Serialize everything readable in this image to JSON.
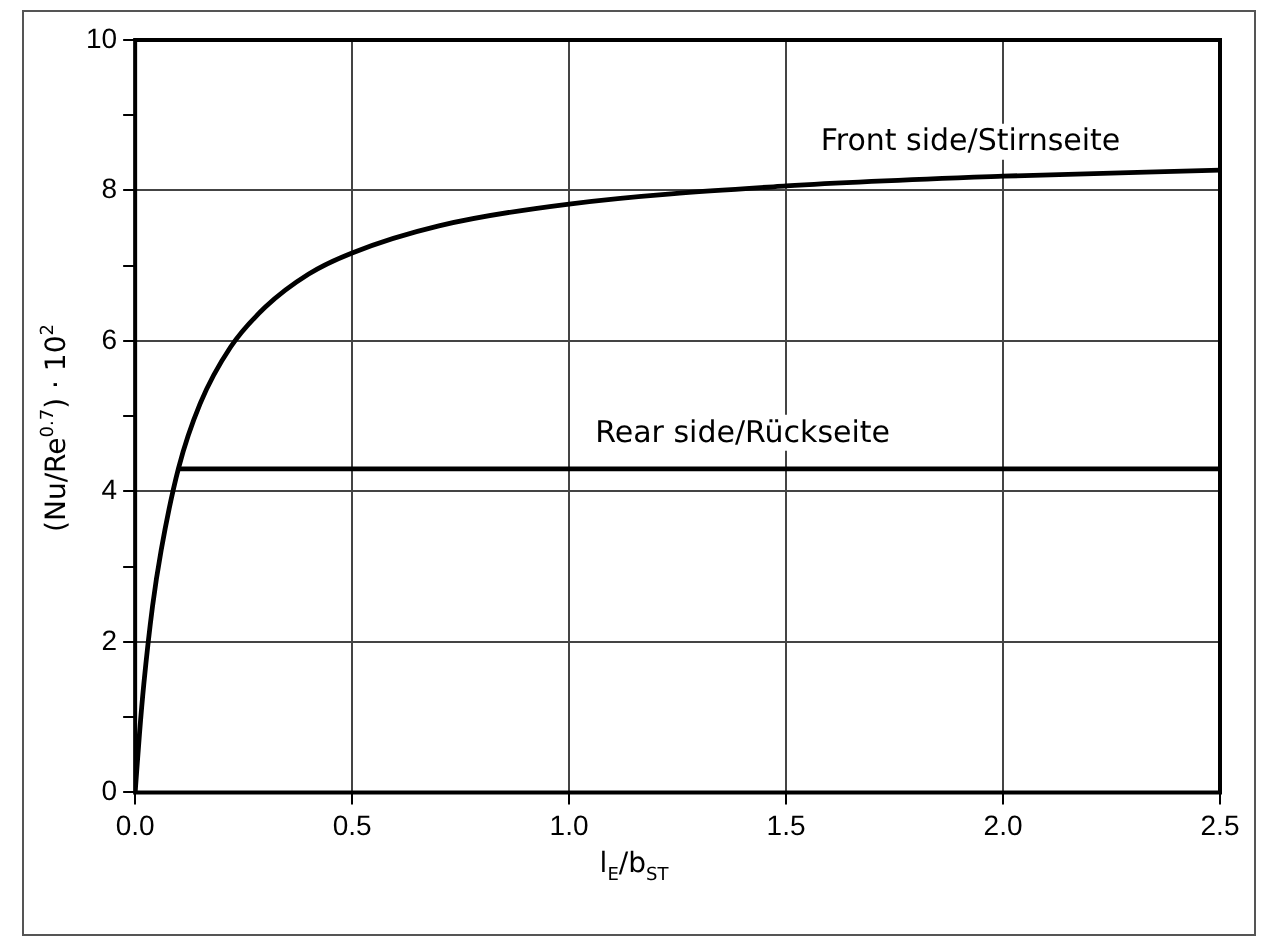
{
  "chart_data": {
    "type": "line",
    "xlabel": "l$_{E}$/b$_{ST}$",
    "ylabel": "(Nu/Re$^{0.7}$) · 10$^{2}$",
    "xlim": [
      0,
      2.5
    ],
    "xticks": [
      {
        "value": 0,
        "label": "0.0"
      },
      {
        "value": 0.5,
        "label": "0.5"
      },
      {
        "value": 1,
        "label": "1.0"
      },
      {
        "value": 1.5,
        "label": "1.5"
      },
      {
        "value": 2,
        "label": "2.0"
      },
      {
        "value": 2.5,
        "label": "2.5"
      }
    ],
    "ylim": [
      0,
      10
    ],
    "yticks": [
      0,
      {
        "value": 1,
        "label": null
      },
      2,
      {
        "value": 3,
        "label": null
      },
      4,
      {
        "value": 5,
        "label": null
      },
      6,
      {
        "value": 7,
        "label": null
      },
      8,
      {
        "value": 9,
        "label": null
      },
      10
    ],
    "grid": true,
    "legend": false,
    "marker": "none",
    "line_style": "solid",
    "series": [
      {
        "name": "Front side/Stirnseite",
        "color": "#000000",
        "x": [
          0,
          0.01,
          0.02,
          0.04,
          0.06,
          0.1,
          0.15,
          0.22,
          0.3,
          0.4,
          0.5,
          0.7,
          1.0,
          1.5,
          2.0,
          2.5
        ],
        "values": [
          0,
          0.78,
          1.44,
          2.47,
          3.22,
          4.31,
          5.17,
          5.92,
          6.45,
          6.89,
          7.17,
          7.53,
          7.82,
          8.06,
          8.19,
          8.27
        ]
      },
      {
        "name": "Rear side/Rückseite",
        "color": "#000000",
        "x": [
          0.1,
          2.5
        ],
        "values": [
          4.3,
          4.3
        ]
      }
    ]
  }
}
